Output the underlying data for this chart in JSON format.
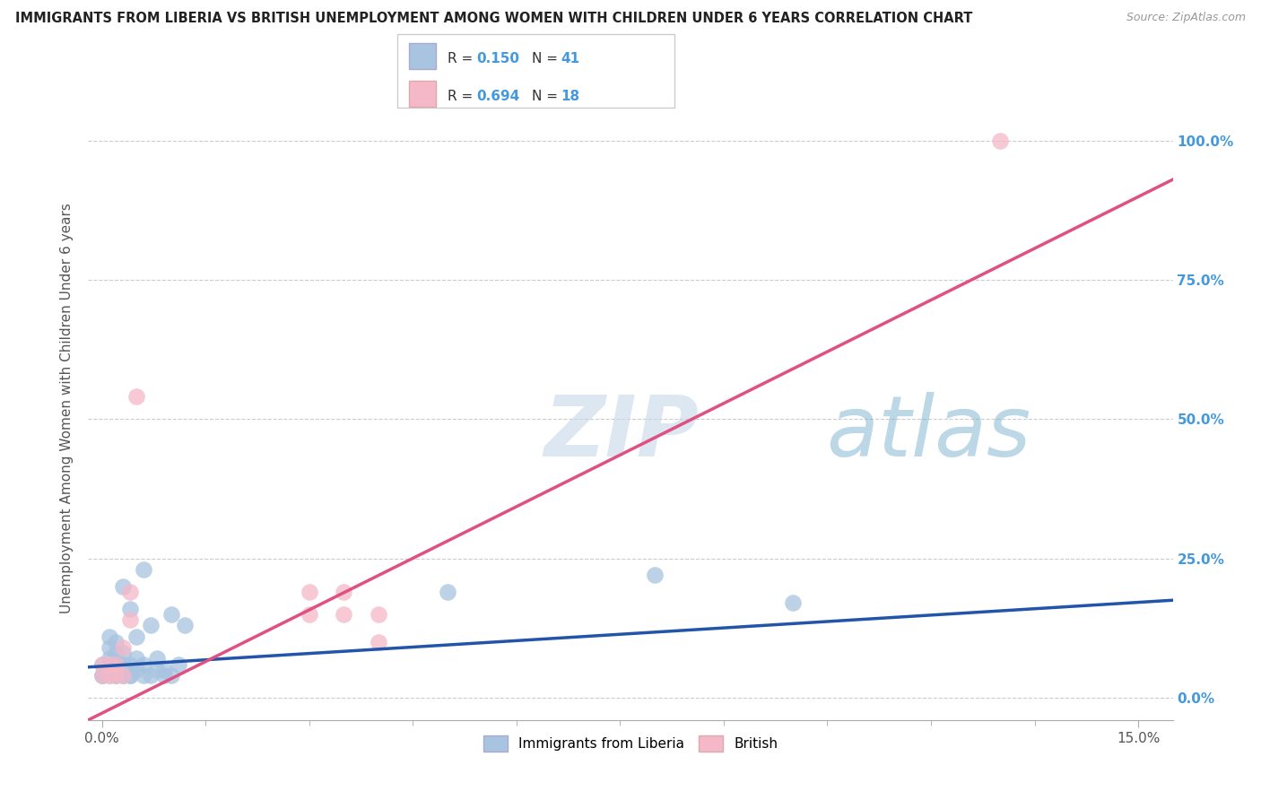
{
  "title": "IMMIGRANTS FROM LIBERIA VS BRITISH UNEMPLOYMENT AMONG WOMEN WITH CHILDREN UNDER 6 YEARS CORRELATION CHART",
  "source": "Source: ZipAtlas.com",
  "ylabel": "Unemployment Among Women with Children Under 6 years",
  "ytick_labels": [
    "0.0%",
    "25.0%",
    "50.0%",
    "75.0%",
    "100.0%"
  ],
  "ytick_values": [
    0.0,
    0.25,
    0.5,
    0.75,
    1.0
  ],
  "xlim": [
    -0.002,
    0.155
  ],
  "ylim": [
    -0.04,
    1.08
  ],
  "watermark": "ZIPatlas",
  "series": [
    {
      "name": "Immigrants from Liberia",
      "R": 0.15,
      "N": 41,
      "color": "#a8c4e0",
      "line_color": "#2255aa",
      "x": [
        0.0,
        0.0,
        0.001,
        0.001,
        0.001,
        0.001,
        0.002,
        0.002,
        0.002,
        0.002,
        0.003,
        0.003,
        0.003,
        0.003,
        0.004,
        0.004,
        0.004,
        0.005,
        0.005,
        0.005,
        0.006,
        0.006,
        0.006,
        0.007,
        0.007,
        0.008,
        0.008,
        0.009,
        0.009,
        0.01,
        0.01,
        0.011,
        0.012,
        0.05,
        0.08,
        0.1,
        0.0,
        0.001,
        0.002,
        0.003,
        0.004
      ],
      "y": [
        0.04,
        0.06,
        0.05,
        0.07,
        0.09,
        0.11,
        0.04,
        0.06,
        0.08,
        0.1,
        0.04,
        0.06,
        0.08,
        0.2,
        0.04,
        0.06,
        0.16,
        0.05,
        0.07,
        0.11,
        0.04,
        0.06,
        0.23,
        0.04,
        0.13,
        0.05,
        0.07,
        0.04,
        0.05,
        0.04,
        0.15,
        0.06,
        0.13,
        0.19,
        0.22,
        0.17,
        0.04,
        0.04,
        0.04,
        0.04,
        0.04
      ],
      "trend_x": [
        -0.002,
        0.155
      ],
      "trend_y": [
        0.055,
        0.175
      ]
    },
    {
      "name": "British",
      "R": 0.694,
      "N": 18,
      "color": "#f4b8c8",
      "line_color": "#e05080",
      "x": [
        0.0,
        0.0,
        0.001,
        0.001,
        0.002,
        0.002,
        0.003,
        0.003,
        0.004,
        0.004,
        0.005,
        0.03,
        0.03,
        0.035,
        0.035,
        0.04,
        0.04,
        0.13
      ],
      "y": [
        0.04,
        0.06,
        0.04,
        0.06,
        0.04,
        0.06,
        0.04,
        0.09,
        0.14,
        0.19,
        0.54,
        0.15,
        0.19,
        0.15,
        0.19,
        0.1,
        0.15,
        1.0
      ],
      "trend_x": [
        -0.002,
        0.155
      ],
      "trend_y": [
        -0.04,
        0.93
      ]
    }
  ],
  "background_color": "#ffffff",
  "grid_color": "#cccccc"
}
